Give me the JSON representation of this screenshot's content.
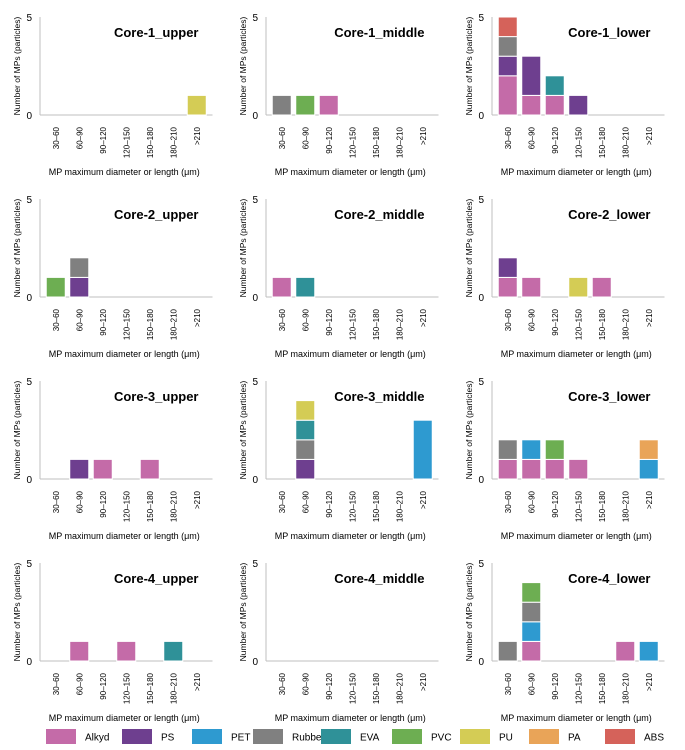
{
  "chart_data": {
    "type": "bar",
    "stacked": true,
    "categories": [
      "30–60",
      "60–90",
      "90–120",
      "120–150",
      "150–180",
      "180–210",
      ">210"
    ],
    "xlabel": "MP maximum diameter or length (μm)",
    "ylabel": "Number of MPs (particles)",
    "ylim": [
      0,
      5
    ],
    "yticks": [
      0,
      5
    ],
    "legend_position": "bottom",
    "polymers": [
      {
        "name": "Alkyd",
        "color": "#C46BA8"
      },
      {
        "name": "PS",
        "color": "#6E3F8F"
      },
      {
        "name": "PET",
        "color": "#2E9AD0"
      },
      {
        "name": "Rubber",
        "color": "#808080"
      },
      {
        "name": "EVA",
        "color": "#2F9198"
      },
      {
        "name": "PVC",
        "color": "#6DAE52"
      },
      {
        "name": "PU",
        "color": "#D4CC55"
      },
      {
        "name": "PA",
        "color": "#E9A458"
      },
      {
        "name": "ABS",
        "color": "#D5625A"
      }
    ],
    "panels": [
      {
        "title": "Core-1_upper",
        "stacks": [
          [],
          [],
          [],
          [],
          [],
          [],
          [
            [
              "PU",
              1
            ]
          ]
        ]
      },
      {
        "title": "Core-1_middle",
        "stacks": [
          [
            [
              "Rubber",
              1
            ]
          ],
          [
            [
              "PVC",
              1
            ]
          ],
          [
            [
              "Alkyd",
              1
            ]
          ],
          [],
          [],
          [],
          []
        ]
      },
      {
        "title": "Core-1_lower",
        "stacks": [
          [
            [
              "Alkyd",
              2
            ],
            [
              "PS",
              1
            ],
            [
              "Rubber",
              1
            ],
            [
              "ABS",
              1
            ]
          ],
          [
            [
              "Alkyd",
              1
            ],
            [
              "PS",
              2
            ]
          ],
          [
            [
              "Alkyd",
              1
            ],
            [
              "EVA",
              1
            ]
          ],
          [
            [
              "PS",
              1
            ]
          ],
          [],
          [],
          []
        ]
      },
      {
        "title": "Core-2_upper",
        "stacks": [
          [
            [
              "PVC",
              1
            ]
          ],
          [
            [
              "PS",
              1
            ],
            [
              "Rubber",
              1
            ]
          ],
          [],
          [],
          [],
          [],
          []
        ]
      },
      {
        "title": "Core-2_middle",
        "stacks": [
          [
            [
              "Alkyd",
              1
            ]
          ],
          [
            [
              "EVA",
              1
            ]
          ],
          [],
          [],
          [],
          [],
          []
        ]
      },
      {
        "title": "Core-2_lower",
        "stacks": [
          [
            [
              "Alkyd",
              1
            ],
            [
              "PS",
              1
            ]
          ],
          [
            [
              "Alkyd",
              1
            ]
          ],
          [],
          [
            [
              "PU",
              1
            ]
          ],
          [
            [
              "Alkyd",
              1
            ]
          ],
          [],
          []
        ]
      },
      {
        "title": "Core-3_upper",
        "stacks": [
          [],
          [
            [
              "PS",
              1
            ]
          ],
          [
            [
              "Alkyd",
              1
            ]
          ],
          [],
          [
            [
              "Alkyd",
              1
            ]
          ],
          [],
          []
        ]
      },
      {
        "title": "Core-3_middle",
        "stacks": [
          [],
          [
            [
              "PS",
              1
            ],
            [
              "Rubber",
              1
            ],
            [
              "EVA",
              1
            ],
            [
              "PU",
              1
            ]
          ],
          [],
          [],
          [],
          [],
          [
            [
              "PET",
              3
            ]
          ]
        ]
      },
      {
        "title": "Core-3_lower",
        "stacks": [
          [
            [
              "Alkyd",
              1
            ],
            [
              "Rubber",
              1
            ]
          ],
          [
            [
              "Alkyd",
              1
            ],
            [
              "PET",
              1
            ]
          ],
          [
            [
              "Alkyd",
              1
            ],
            [
              "PVC",
              1
            ]
          ],
          [
            [
              "Alkyd",
              1
            ]
          ],
          [],
          [],
          [
            [
              "PET",
              1
            ],
            [
              "PA",
              1
            ]
          ]
        ]
      },
      {
        "title": "Core-4_upper",
        "stacks": [
          [],
          [
            [
              "Alkyd",
              1
            ]
          ],
          [],
          [
            [
              "Alkyd",
              1
            ]
          ],
          [],
          [
            [
              "EVA",
              1
            ]
          ],
          []
        ]
      },
      {
        "title": "Core-4_middle",
        "stacks": [
          [],
          [],
          [],
          [],
          [],
          [],
          []
        ]
      },
      {
        "title": "Core-4_lower",
        "stacks": [
          [
            [
              "Rubber",
              1
            ]
          ],
          [
            [
              "Alkyd",
              1
            ],
            [
              "PET",
              1
            ],
            [
              "Rubber",
              1
            ],
            [
              "PVC",
              1
            ]
          ],
          [],
          [],
          [],
          [
            [
              "Alkyd",
              1
            ]
          ],
          [
            [
              "PET",
              1
            ]
          ]
        ]
      }
    ]
  }
}
